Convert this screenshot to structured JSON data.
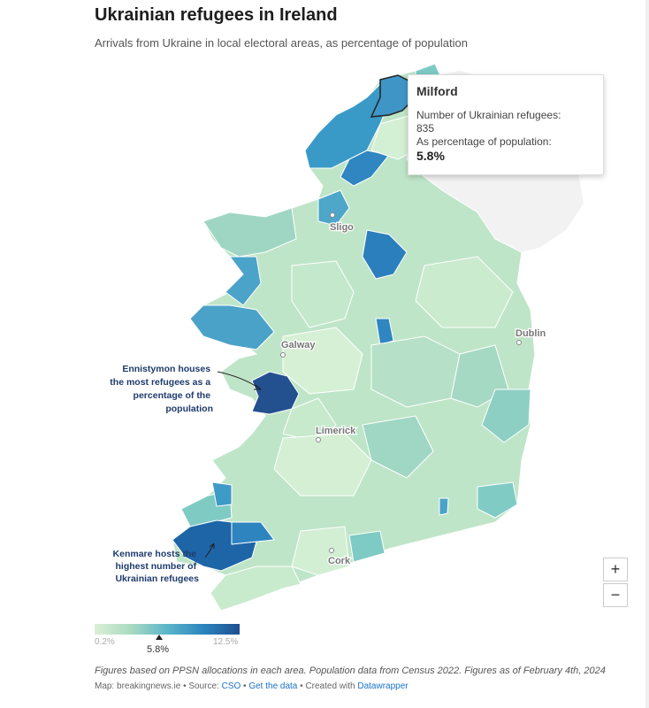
{
  "header": {
    "title": "Ukrainian refugees in Ireland",
    "subtitle": "Arrivals from Ukraine in local electoral areas, as percentage of population"
  },
  "tooltip": {
    "area": "Milford",
    "count_label": "Number of Ukrainian refugees:",
    "count_value": "835",
    "pct_label": "As percentage of population:",
    "pct_value": "5.8%"
  },
  "cities": {
    "sligo": "Sligo",
    "galway": "Galway",
    "dublin": "Dublin",
    "limerick": "Limerick",
    "cork": "Cork"
  },
  "annotations": {
    "ennistymon": [
      "Ennistymon houses",
      "the most refugees as a",
      "percentage of the",
      "population"
    ],
    "kenmare": [
      "Kenmare hosts the",
      "highest number of",
      "Ukrainian refugees"
    ]
  },
  "legend": {
    "min": "0.2%",
    "max": "12.5%",
    "marker_value": "5.8%",
    "marker_fraction": 0.45
  },
  "zoom": {
    "in": "+",
    "out": "−"
  },
  "footer": {
    "notes": "Figures based on PPSN allocations in each area. Population data from Census 2022. Figures as of February 4th, 2024",
    "map_source": "Map: breakingnews.ie",
    "source_label": "Source:",
    "source_link": "CSO",
    "get_data": "Get the data",
    "created_with": "Created with",
    "tool": "Datawrapper"
  },
  "colors": {
    "lowest": "#dbf0d6",
    "low": "#a9dbc1",
    "mid": "#5bb6c9",
    "high": "#2b84be",
    "highest": "#1d4f8f",
    "northern_ireland": "#f2f2f2"
  }
}
